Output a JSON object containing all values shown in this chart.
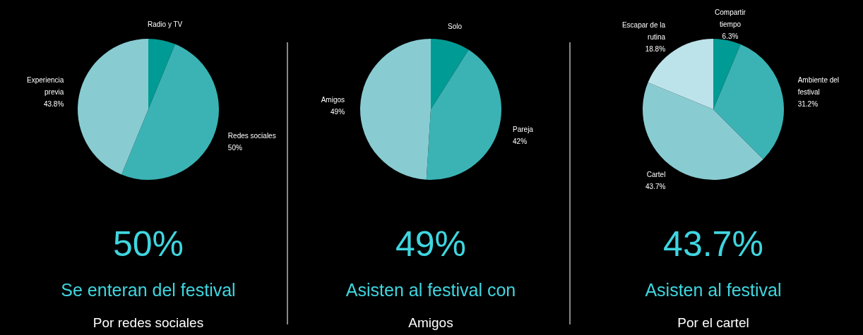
{
  "chart_data": [
    {
      "type": "pie",
      "title": "Se enteran del festival",
      "subtitle": "Por redes sociales",
      "annotations": [
        "50%"
      ],
      "categories": [
        "Radio y TV",
        "Redes sociales",
        "Experiencia previa"
      ],
      "values": [
        6.2,
        50,
        43.8
      ],
      "value_labels": [
        null,
        "50%",
        "43.8%"
      ],
      "colors": [
        "#009b94",
        "#3bb3b4",
        "#88ccd2"
      ]
    },
    {
      "type": "pie",
      "title": "Asisten al festival con",
      "subtitle": "Amigos",
      "annotations": [
        "49%"
      ],
      "categories": [
        "Solo",
        "Pareja",
        "Amigos"
      ],
      "values": [
        9,
        42,
        49
      ],
      "value_labels": [
        null,
        "42%",
        "49%"
      ],
      "colors": [
        "#009b94",
        "#3bb3b4",
        "#88ccd2"
      ]
    },
    {
      "type": "pie",
      "title": "Asisten al festival",
      "subtitle": "Por el cartel",
      "annotations": [
        "43.7%"
      ],
      "categories": [
        "Compartir tiempo",
        "Ambiente del festival",
        "Cartel",
        "Escapar de la rutina"
      ],
      "values": [
        6.3,
        31.2,
        43.7,
        18.8
      ],
      "value_labels": [
        "6.3%",
        "31.2%",
        "43.7%",
        "18.8%"
      ],
      "colors": [
        "#009b94",
        "#3bb3b4",
        "#88ccd2",
        "#bde3ea"
      ]
    }
  ]
}
